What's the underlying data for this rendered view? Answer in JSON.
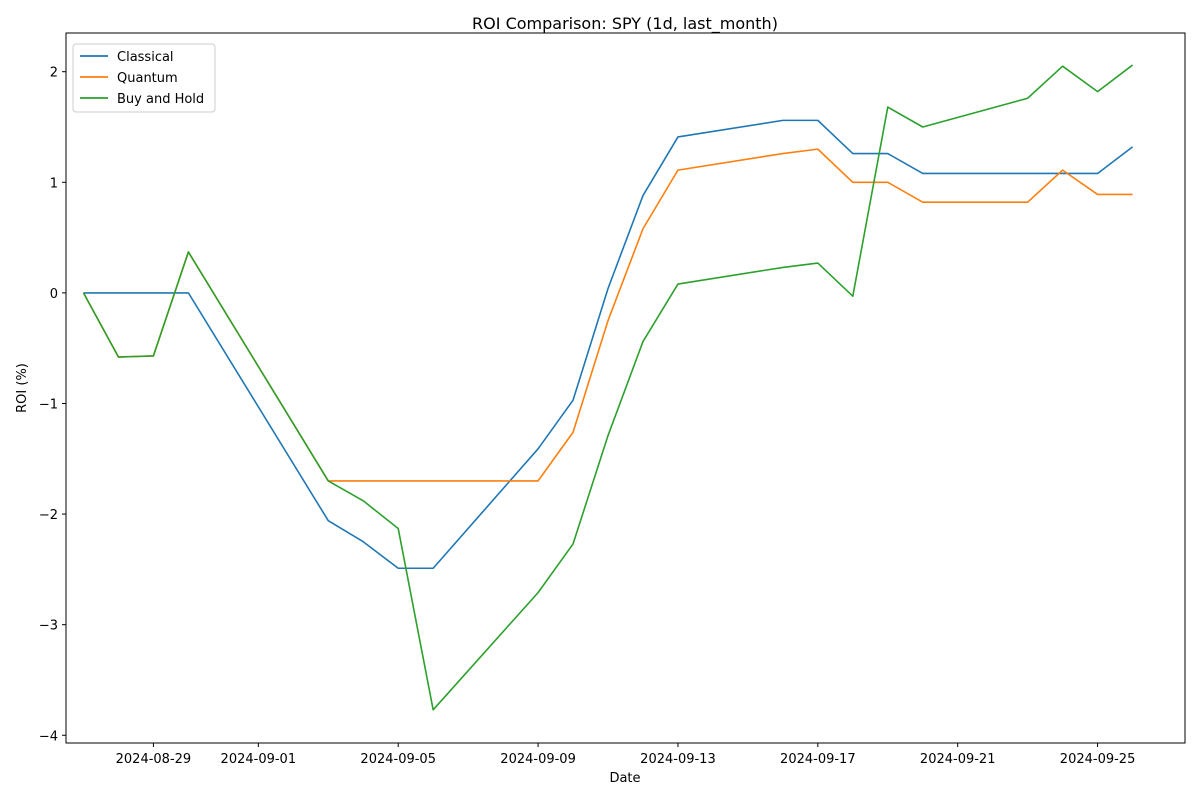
{
  "chart_data": {
    "type": "line",
    "title": "ROI Comparison: SPY (1d, last_month)",
    "xlabel": "Date",
    "ylabel": "ROI (%)",
    "legend_position": "top-left",
    "grid": false,
    "xlim": [
      "2024-08-26T12:00",
      "2024-09-27T12:00"
    ],
    "ylim": [
      -4.07,
      2.35
    ],
    "x_ticks": [
      "2024-08-29",
      "2024-09-01",
      "2024-09-05",
      "2024-09-09",
      "2024-09-13",
      "2024-09-17",
      "2024-09-21",
      "2024-09-25"
    ],
    "y_ticks": [
      2,
      1,
      0,
      -1,
      -2,
      -3,
      -4
    ],
    "y_tick_labels": [
      "2",
      "1",
      "0",
      "−1",
      "−2",
      "−3",
      "−4"
    ],
    "x": [
      "2024-08-27",
      "2024-08-28",
      "2024-08-29",
      "2024-08-30",
      "2024-09-03",
      "2024-09-04",
      "2024-09-05",
      "2024-09-06",
      "2024-09-09",
      "2024-09-10",
      "2024-09-11",
      "2024-09-12",
      "2024-09-13",
      "2024-09-16",
      "2024-09-17",
      "2024-09-18",
      "2024-09-19",
      "2024-09-20",
      "2024-09-23",
      "2024-09-24",
      "2024-09-25",
      "2024-09-26"
    ],
    "series": [
      {
        "name": "Classical",
        "color": "#1f77b4",
        "values": [
          0,
          0,
          0,
          0,
          -2.06,
          -2.25,
          -2.49,
          -2.49,
          -1.41,
          -0.97,
          0.04,
          0.88,
          1.41,
          1.56,
          1.56,
          1.26,
          1.26,
          1.08,
          1.08,
          1.08,
          1.08,
          1.32
        ]
      },
      {
        "name": "Quantum",
        "color": "#ff7f0e",
        "values": [
          0,
          -0.58,
          -0.57,
          0.37,
          -1.7,
          -1.7,
          -1.7,
          -1.7,
          -1.7,
          -1.26,
          -0.25,
          0.58,
          1.11,
          1.26,
          1.3,
          1.0,
          1.0,
          0.82,
          0.82,
          1.11,
          0.89,
          0.89
        ]
      },
      {
        "name": "Buy and Hold",
        "color": "#2ca02c",
        "values": [
          0,
          -0.58,
          -0.57,
          0.37,
          -1.7,
          -1.88,
          -2.13,
          -3.77,
          -2.71,
          -2.27,
          -1.29,
          -0.44,
          0.08,
          0.23,
          0.27,
          -0.03,
          1.68,
          1.5,
          1.76,
          2.05,
          1.82,
          2.06
        ]
      }
    ]
  }
}
